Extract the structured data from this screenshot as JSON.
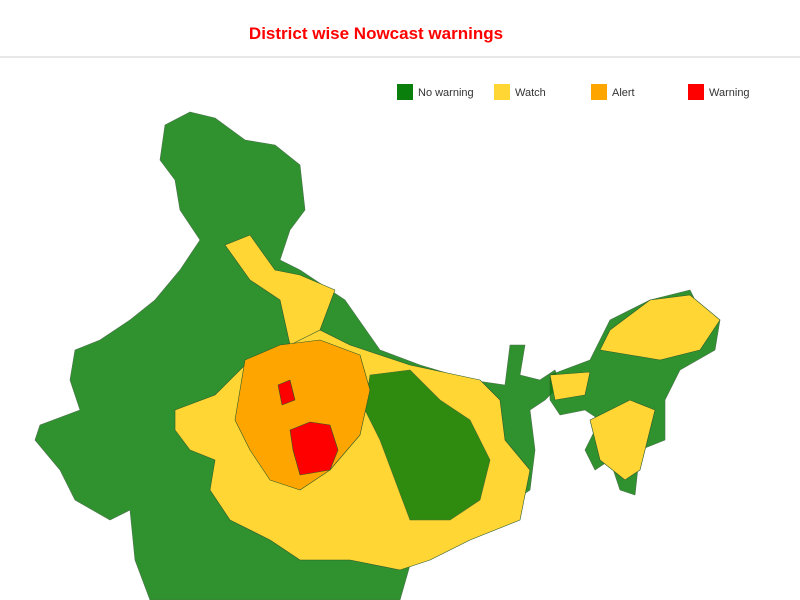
{
  "header": {
    "title": "District wise Nowcast warnings"
  },
  "legend": [
    {
      "label": "No warning",
      "color": "#0b7f0b"
    },
    {
      "label": "Watch",
      "color": "#ffd633"
    },
    {
      "label": "Alert",
      "color": "#ffa500"
    },
    {
      "label": "Warning",
      "color": "#ff0000"
    }
  ]
}
